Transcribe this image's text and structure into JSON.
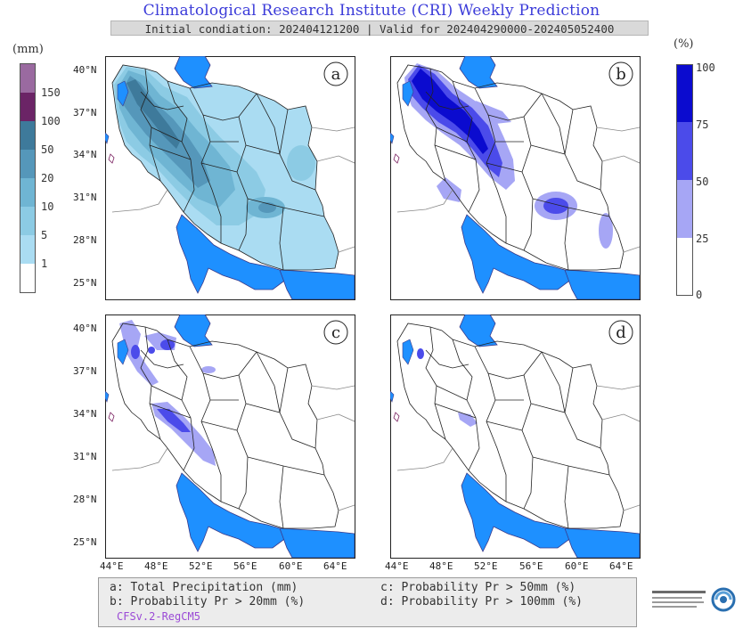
{
  "header": {
    "title": "Climatological Research Institute (CRI) Weekly Prediction",
    "subtitle": "Initial condiation: 202404121200 | Valid for 202404290000-202405052400"
  },
  "colorbar_precip": {
    "unit": "(mm)",
    "levels": [
      "1",
      "5",
      "10",
      "20",
      "50",
      "100",
      "150"
    ],
    "colors": [
      "#ffffff",
      "#aadcf2",
      "#8ccbe4",
      "#6fb5d3",
      "#5597ba",
      "#3e7a9b",
      "#6b2466",
      "#9a6aa0"
    ]
  },
  "colorbar_prob": {
    "unit": "(%)",
    "levels": [
      "0",
      "25",
      "50",
      "75",
      "100"
    ],
    "colors": [
      "#ffffff",
      "#a6a6f5",
      "#4b4bea",
      "#0b0bcf"
    ]
  },
  "panels": [
    {
      "label": "a"
    },
    {
      "label": "b"
    },
    {
      "label": "c"
    },
    {
      "label": "d"
    }
  ],
  "axes": {
    "lat_ticks": [
      "40°N",
      "37°N",
      "34°N",
      "31°N",
      "28°N",
      "25°N"
    ],
    "lon_ticks": [
      "44°E",
      "48°E",
      "52°E",
      "56°E",
      "60°E",
      "64°E"
    ]
  },
  "legend": {
    "a": "a: Total Precipitation (mm)",
    "b": "b: Probability Pr > 20mm (%)",
    "c": "c: Probability Pr > 50mm (%)",
    "d": "d: Probability Pr > 100mm (%)",
    "model": "CFSv.2-RegCM5"
  },
  "colors": {
    "water": "#1e90ff",
    "title": "#3b3bd9"
  }
}
